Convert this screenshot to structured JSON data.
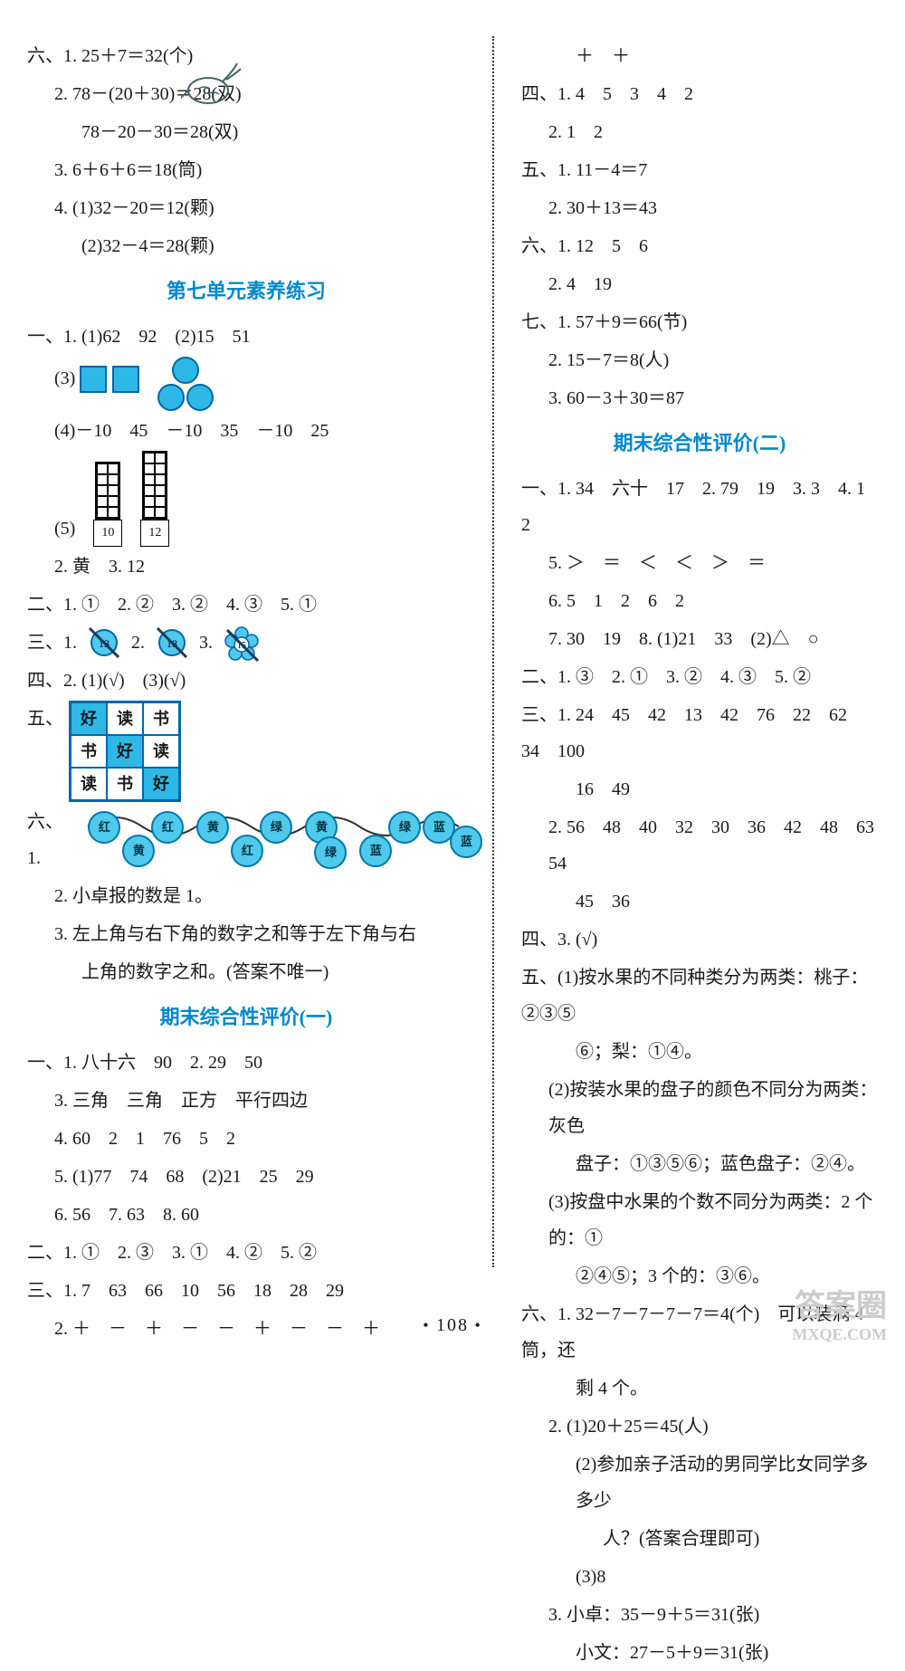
{
  "page_number": "108",
  "watermark_top": "答案圈",
  "watermark_bottom": "MXQE.COM",
  "colors": {
    "title": "#0088cc",
    "shape_fill": "#2eb8e6",
    "shape_border": "#0066aa",
    "text": "#1a1a1a",
    "divider": "#333333",
    "watermark": "#cccccc"
  },
  "left": {
    "six": {
      "label": "六、",
      "l1": "1. 25＋7＝32(个)",
      "l2": "2. 78－(20＋30)＝28(双)",
      "l2b": "78－20－30＝28(双)",
      "l3": "3. 6＋6＋6＝18(筒)",
      "l4a": "4. (1)32－20＝12(颗)",
      "l4b": "(2)32－4＝28(颗)"
    },
    "unit7_title": "第七单元素养练习",
    "one": {
      "label": "一、",
      "l1": "1. (1)62　92　(2)15　51",
      "l3": "(3)",
      "l4": "(4)－10　45　－10　35　－10　25",
      "l5": "(5)",
      "grid_a": "10",
      "grid_b": "12",
      "l2": "2. 黄　3. 12"
    },
    "two": {
      "label": "二、",
      "content": "1. ①　2. ②　3. ②　4. ③　5. ①"
    },
    "three": {
      "label": "三、1.",
      "n1": "13",
      "mid": "2.",
      "n2": "18",
      "end": "3.",
      "n3": "15"
    },
    "four": {
      "label": "四、2. (1)(√)　(3)(√)"
    },
    "five": {
      "label": "五、",
      "cells": [
        "好",
        "读",
        "书",
        "书",
        "好",
        "读",
        "读",
        "书",
        "好"
      ],
      "fills": [
        true,
        false,
        false,
        false,
        true,
        false,
        false,
        false,
        true
      ]
    },
    "six2": {
      "label": "六、1.",
      "beads": [
        "红",
        "黄",
        "红",
        "黄",
        "红",
        "绿",
        "黄",
        "绿",
        "蓝",
        "绿",
        "蓝",
        "蓝"
      ],
      "l2": "2. 小卓报的数是 1。",
      "l3a": "3. 左上角与右下角的数字之和等于左下角与右",
      "l3b": "上角的数字之和。(答案不唯一)"
    },
    "final1_title": "期末综合性评价(一)",
    "f1_one": {
      "label": "一、",
      "l1": "1. 八十六　90　2. 29　50",
      "l3": "3. 三角　三角　正方　平行四边",
      "l4": "4. 60　2　1　76　5　2",
      "l5": "5. (1)77　74　68　(2)21　25　29",
      "l6": "6. 56　7. 63　8. 60"
    },
    "f1_two": {
      "content": "二、1. ①　2. ③　3. ①　4. ②　5. ②"
    },
    "f1_three": {
      "l1": "三、1. 7　63　66　10　56　18　28　29",
      "l2": "2. ＋　－　＋　－　－　＋　－　－　＋"
    }
  },
  "right": {
    "top_plus": "＋　＋",
    "four": {
      "l1": "四、1. 4　5　3　4　2",
      "l2": "2. 1　2"
    },
    "five": {
      "l1": "五、1. 11－4＝7",
      "l2": "2. 30＋13＝43"
    },
    "six": {
      "l1": "六、1. 12　5　6",
      "l2": "2. 4　19"
    },
    "seven": {
      "l1": "七、1. 57＋9＝66(节)",
      "l2": "2. 15－7＝8(人)",
      "l3": "3. 60－3＋30＝87"
    },
    "final2_title": "期末综合性评价(二)",
    "f2_one": {
      "l1": "一、1. 34　六十　17　2. 79　19　3. 3　4. 1　2",
      "l5": "5. ＞　＝　＜　＜　＞　＝",
      "l6": "6. 5　1　2　6　2",
      "l7": "7. 30　19　8. (1)21　33　(2)△　○"
    },
    "f2_two": {
      "content": "二、1. ③　2. ①　3. ②　4. ③　5. ②"
    },
    "f2_three": {
      "l1": "三、1. 24　45　42　13　42　76　22　62　34　100",
      "l1b": "16　49",
      "l2": "2. 56　48　40　32　30　36　42　48　63　54",
      "l2b": "45　36"
    },
    "f2_four": "四、3. (√)",
    "f2_five": {
      "l1": "五、(1)按水果的不同种类分为两类：桃子：②③⑤",
      "l1b": "⑥；梨：①④。",
      "l2": "(2)按装水果的盘子的颜色不同分为两类：灰色",
      "l2b": "盘子：①③⑤⑥；蓝色盘子：②④。",
      "l3": "(3)按盘中水果的个数不同分为两类：2 个的：①",
      "l3b": "②④⑤；3 个的：③⑥。"
    },
    "f2_six": {
      "l1": "六、1. 32－7－7－7－7＝4(个)　可以装满 4 筒，还",
      "l1b": "剩 4 个。",
      "l2": "2. (1)20＋25＝45(人)",
      "l2b": "(2)参加亲子活动的男同学比女同学多多少",
      "l2c": "人？(答案合理即可)",
      "l2d": "(3)8",
      "l3": "3. 小卓：35－9＋5＝31(张)",
      "l3b": "小文：27－5＋9＝31(张)"
    }
  }
}
